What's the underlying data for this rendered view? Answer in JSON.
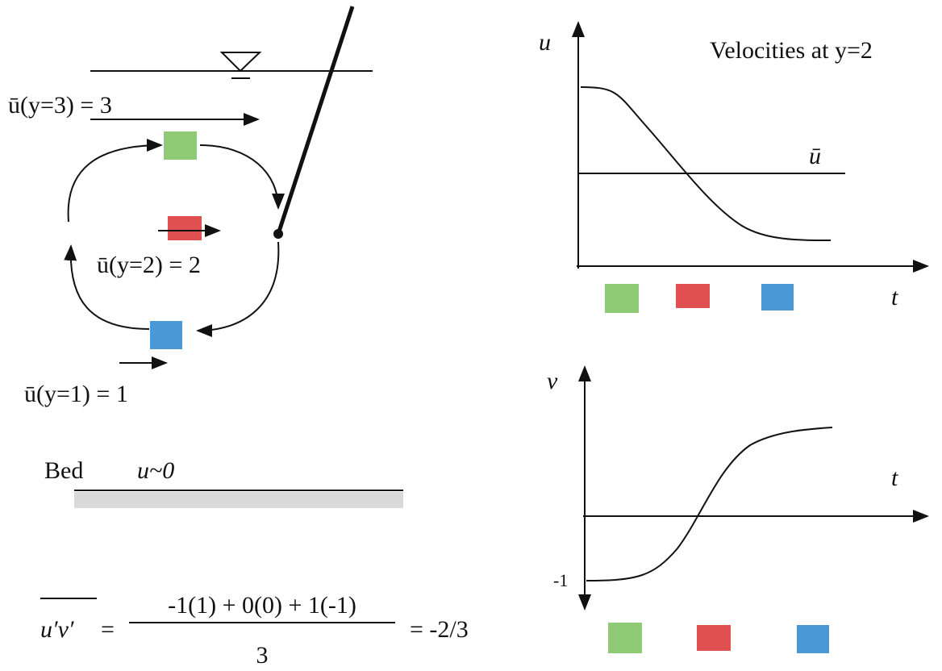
{
  "left_panel": {
    "top_velocity": "ū(y=3) = 3",
    "middle_velocity": "ū(y=2) = 2",
    "bottom_velocity": "ū(y=1) = 1",
    "bed_label": "Bed",
    "bed_velocity": "u~0"
  },
  "upper_plot": {
    "y_axis_label": "u",
    "title": "Velocities at y=2",
    "mean_label": "ū",
    "x_axis_label": "t"
  },
  "lower_plot": {
    "y_axis_label": "v",
    "x_axis_label": "t",
    "min_label": "-1"
  },
  "equation": {
    "lhs": "u′v′",
    "equals": "=",
    "numerator": "-1(1) + 0(0) + 1(-1)",
    "denominator": "3",
    "result": "= -2/3"
  }
}
